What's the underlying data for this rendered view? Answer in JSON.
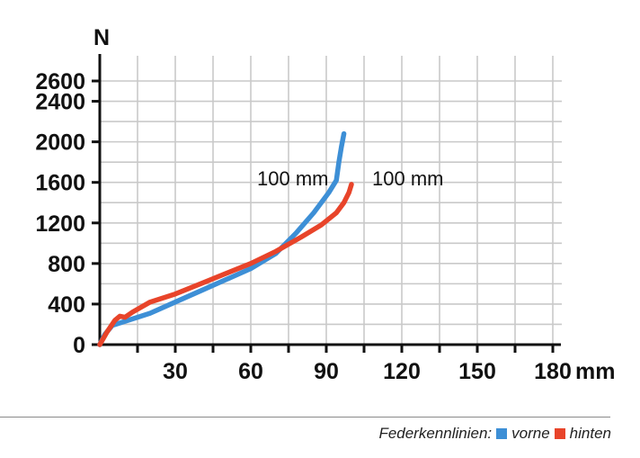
{
  "chart_data": {
    "type": "line",
    "y_unit": "N",
    "x_unit": "mm",
    "xlim": [
      0,
      180
    ],
    "ylim": [
      0,
      2600
    ],
    "x_ticks": [
      30,
      60,
      90,
      120,
      150,
      180
    ],
    "y_ticks": [
      0,
      400,
      800,
      1200,
      1600,
      2000,
      2400,
      2600
    ],
    "grid": true,
    "series": [
      {
        "name": "vorne",
        "color": "#3d8fd6",
        "annotation": "100 mm",
        "points": [
          [
            0,
            0
          ],
          [
            2,
            100
          ],
          [
            5,
            190
          ],
          [
            10,
            230
          ],
          [
            20,
            310
          ],
          [
            30,
            420
          ],
          [
            40,
            530
          ],
          [
            50,
            640
          ],
          [
            60,
            750
          ],
          [
            70,
            900
          ],
          [
            78,
            1100
          ],
          [
            85,
            1300
          ],
          [
            91,
            1500
          ],
          [
            94,
            1620
          ],
          [
            95,
            1800
          ],
          [
            96,
            1950
          ],
          [
            97,
            2080
          ]
        ]
      },
      {
        "name": "hinten",
        "color": "#e8442a",
        "annotation": "100 mm",
        "points": [
          [
            0,
            0
          ],
          [
            3,
            130
          ],
          [
            6,
            240
          ],
          [
            8,
            280
          ],
          [
            10,
            270
          ],
          [
            13,
            320
          ],
          [
            20,
            420
          ],
          [
            30,
            500
          ],
          [
            40,
            600
          ],
          [
            50,
            700
          ],
          [
            60,
            800
          ],
          [
            70,
            920
          ],
          [
            80,
            1060
          ],
          [
            88,
            1180
          ],
          [
            94,
            1300
          ],
          [
            97,
            1400
          ],
          [
            99,
            1500
          ],
          [
            100,
            1580
          ]
        ]
      }
    ]
  },
  "legend": {
    "label": "Federkennlinien:",
    "items": [
      {
        "name": "vorne",
        "color": "#3d8fd6"
      },
      {
        "name": "hinten",
        "color": "#e8442a"
      }
    ]
  }
}
